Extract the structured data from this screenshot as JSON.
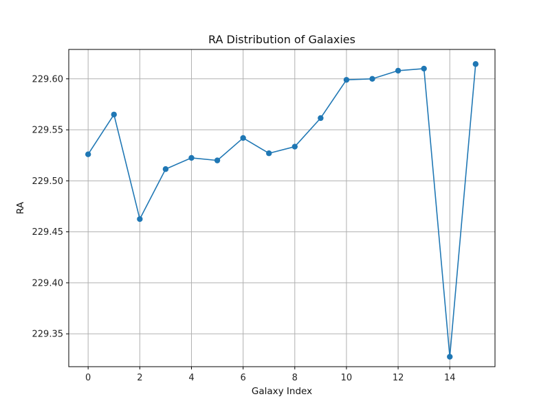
{
  "chart_data": {
    "type": "line",
    "title": "RA Distribution of Galaxies",
    "xlabel": "Galaxy Index",
    "ylabel": "RA",
    "xlim": [
      -0.75,
      15.75
    ],
    "ylim": [
      229.3178,
      229.6288
    ],
    "xticks": [
      0,
      2,
      4,
      6,
      8,
      10,
      12,
      14
    ],
    "xtick_labels": [
      "0",
      "2",
      "4",
      "6",
      "8",
      "10",
      "12",
      "14"
    ],
    "yticks": [
      229.35,
      229.4,
      229.45,
      229.5,
      229.55,
      229.6
    ],
    "ytick_labels": [
      "229.35",
      "229.40",
      "229.45",
      "229.50",
      "229.55",
      "229.60"
    ],
    "grid": true,
    "series": [
      {
        "color": "#1f77b4",
        "marker": "circle",
        "x": [
          0,
          1,
          2,
          3,
          4,
          5,
          6,
          7,
          8,
          9,
          10,
          11,
          12,
          13,
          14,
          15
        ],
        "values": [
          229.526,
          229.565,
          229.4625,
          229.5115,
          229.5225,
          229.52,
          229.542,
          229.527,
          229.5335,
          229.5615,
          229.599,
          229.6,
          229.608,
          229.61,
          229.3275,
          229.6145
        ]
      }
    ]
  }
}
